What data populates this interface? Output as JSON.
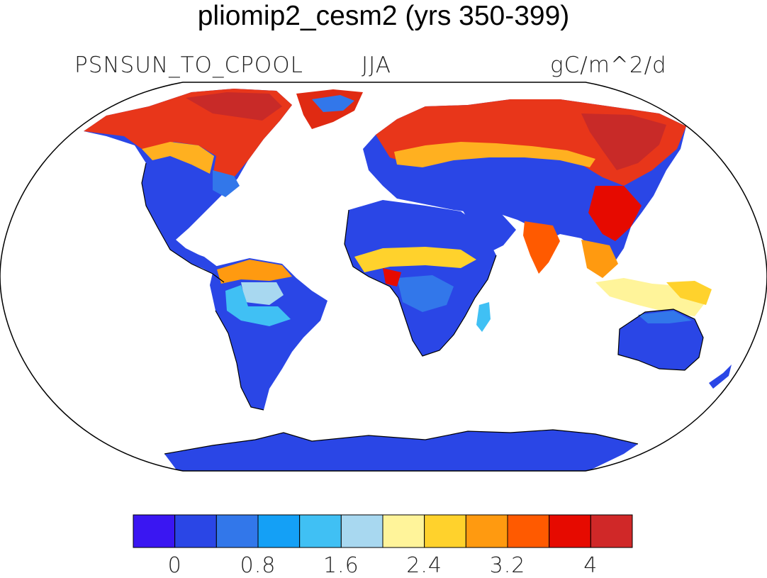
{
  "title": "pliomip2_cesm2 (yrs 350-399)",
  "variable": "PSNSUN_TO_CPOOL",
  "season": "JJA",
  "units": "gC/m^2/d",
  "projection": "Robinson",
  "colorbar": {
    "colors": [
      "#3a16f2",
      "#2a46e6",
      "#3277ea",
      "#14a0f6",
      "#40c0f4",
      "#a8d8f0",
      "#fff49a",
      "#ffd22c",
      "#ff9a10",
      "#ff5a00",
      "#e60a00",
      "#d02828"
    ],
    "tick_labels": [
      "0",
      "0.8",
      "1.6",
      "2.4",
      "3.2",
      "4"
    ]
  },
  "colors": {
    "land_low": "#2a46e6",
    "land_high": "#e02a12",
    "coast": "#000000"
  }
}
